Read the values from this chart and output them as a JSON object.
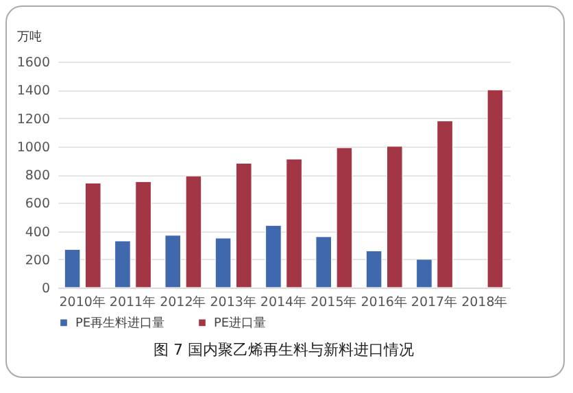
{
  "chart_data": {
    "type": "bar",
    "title": "图 7   国内聚乙烯再生料与新料进口情况",
    "ylabel": "万吨",
    "categories": [
      "2010年",
      "2011年",
      "2012年",
      "2013年",
      "2014年",
      "2015年",
      "2016年",
      "2017年",
      "2018年"
    ],
    "series": [
      {
        "name": "PE再生料进口量",
        "color": "#4068ad",
        "values": [
          270,
          330,
          370,
          350,
          440,
          360,
          260,
          200,
          null
        ]
      },
      {
        "name": "PE进口量",
        "color": "#a23645",
        "values": [
          740,
          750,
          790,
          880,
          910,
          990,
          1000,
          1180,
          1400
        ]
      }
    ],
    "ylim": [
      0,
      1600
    ],
    "yticks": [
      0,
      200,
      400,
      600,
      800,
      1000,
      1200,
      1400,
      1600
    ],
    "grid": "y",
    "legend": "bottom"
  }
}
